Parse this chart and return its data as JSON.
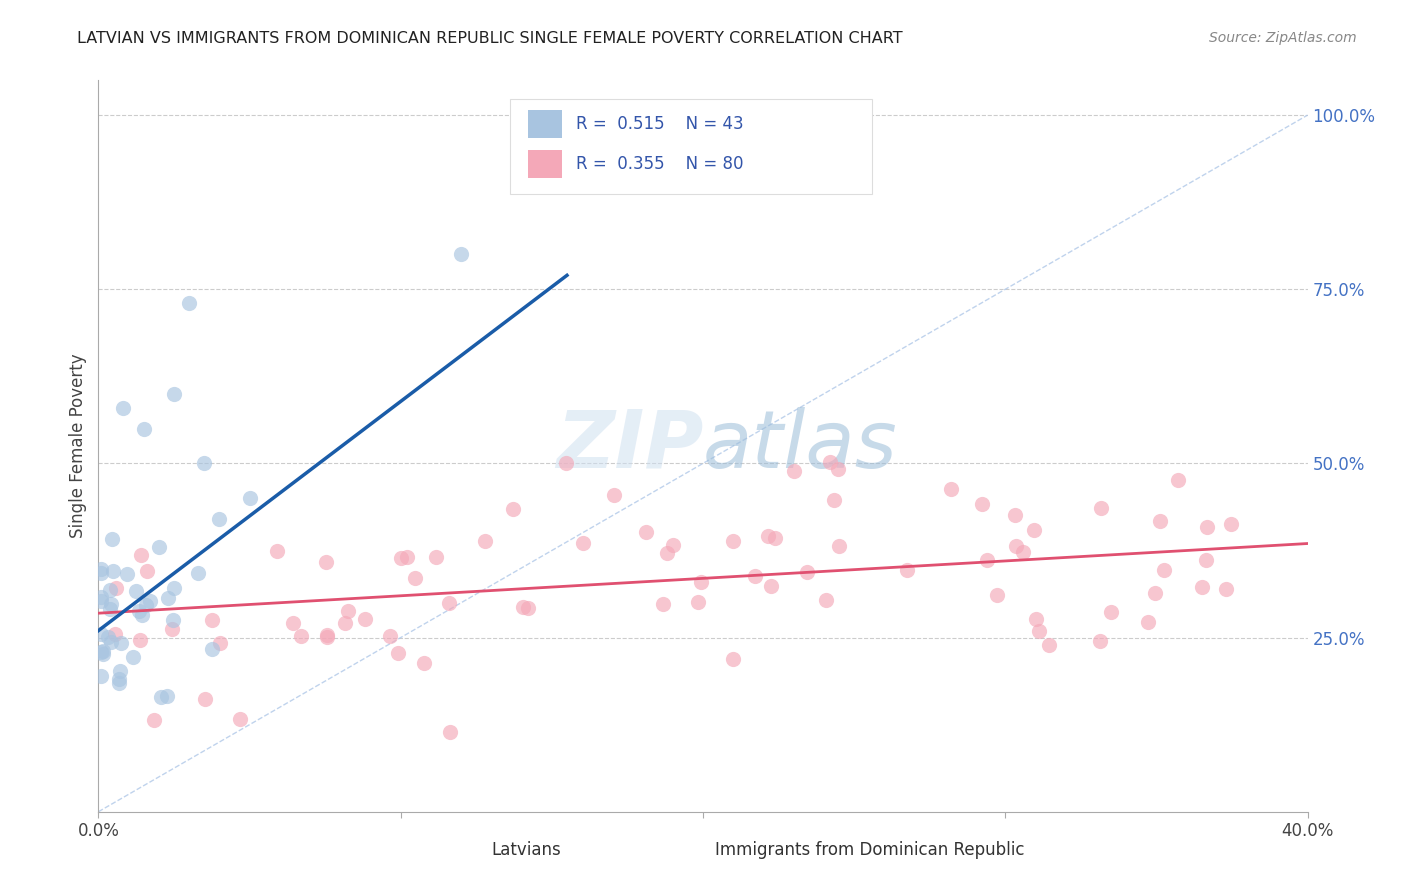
{
  "title": "LATVIAN VS IMMIGRANTS FROM DOMINICAN REPUBLIC SINGLE FEMALE POVERTY CORRELATION CHART",
  "source": "Source: ZipAtlas.com",
  "ylabel": "Single Female Poverty",
  "right_yticks": [
    "100.0%",
    "75.0%",
    "50.0%",
    "25.0%"
  ],
  "right_ytick_vals": [
    1.0,
    0.75,
    0.5,
    0.25
  ],
  "xlim": [
    0.0,
    0.4
  ],
  "ylim": [
    0.0,
    1.05
  ],
  "latvian_R": 0.515,
  "latvian_N": 43,
  "dominican_R": 0.355,
  "dominican_N": 80,
  "latvian_color": "#a8c4e0",
  "dominican_color": "#f4a8b8",
  "latvian_line_color": "#1a5ca8",
  "dominican_line_color": "#e05070",
  "diagonal_color": "#b0c8e8",
  "legend_latvian_label": "Latvians",
  "legend_dominican_label": "Immigrants from Dominican Republic",
  "watermark_zip": "ZIP",
  "watermark_atlas": "atlas",
  "lat_line_x0": 0.0,
  "lat_line_y0": 0.26,
  "lat_line_x1": 0.155,
  "lat_line_y1": 0.77,
  "dom_line_x0": 0.0,
  "dom_line_y0": 0.285,
  "dom_line_x1": 0.4,
  "dom_line_y1": 0.385
}
